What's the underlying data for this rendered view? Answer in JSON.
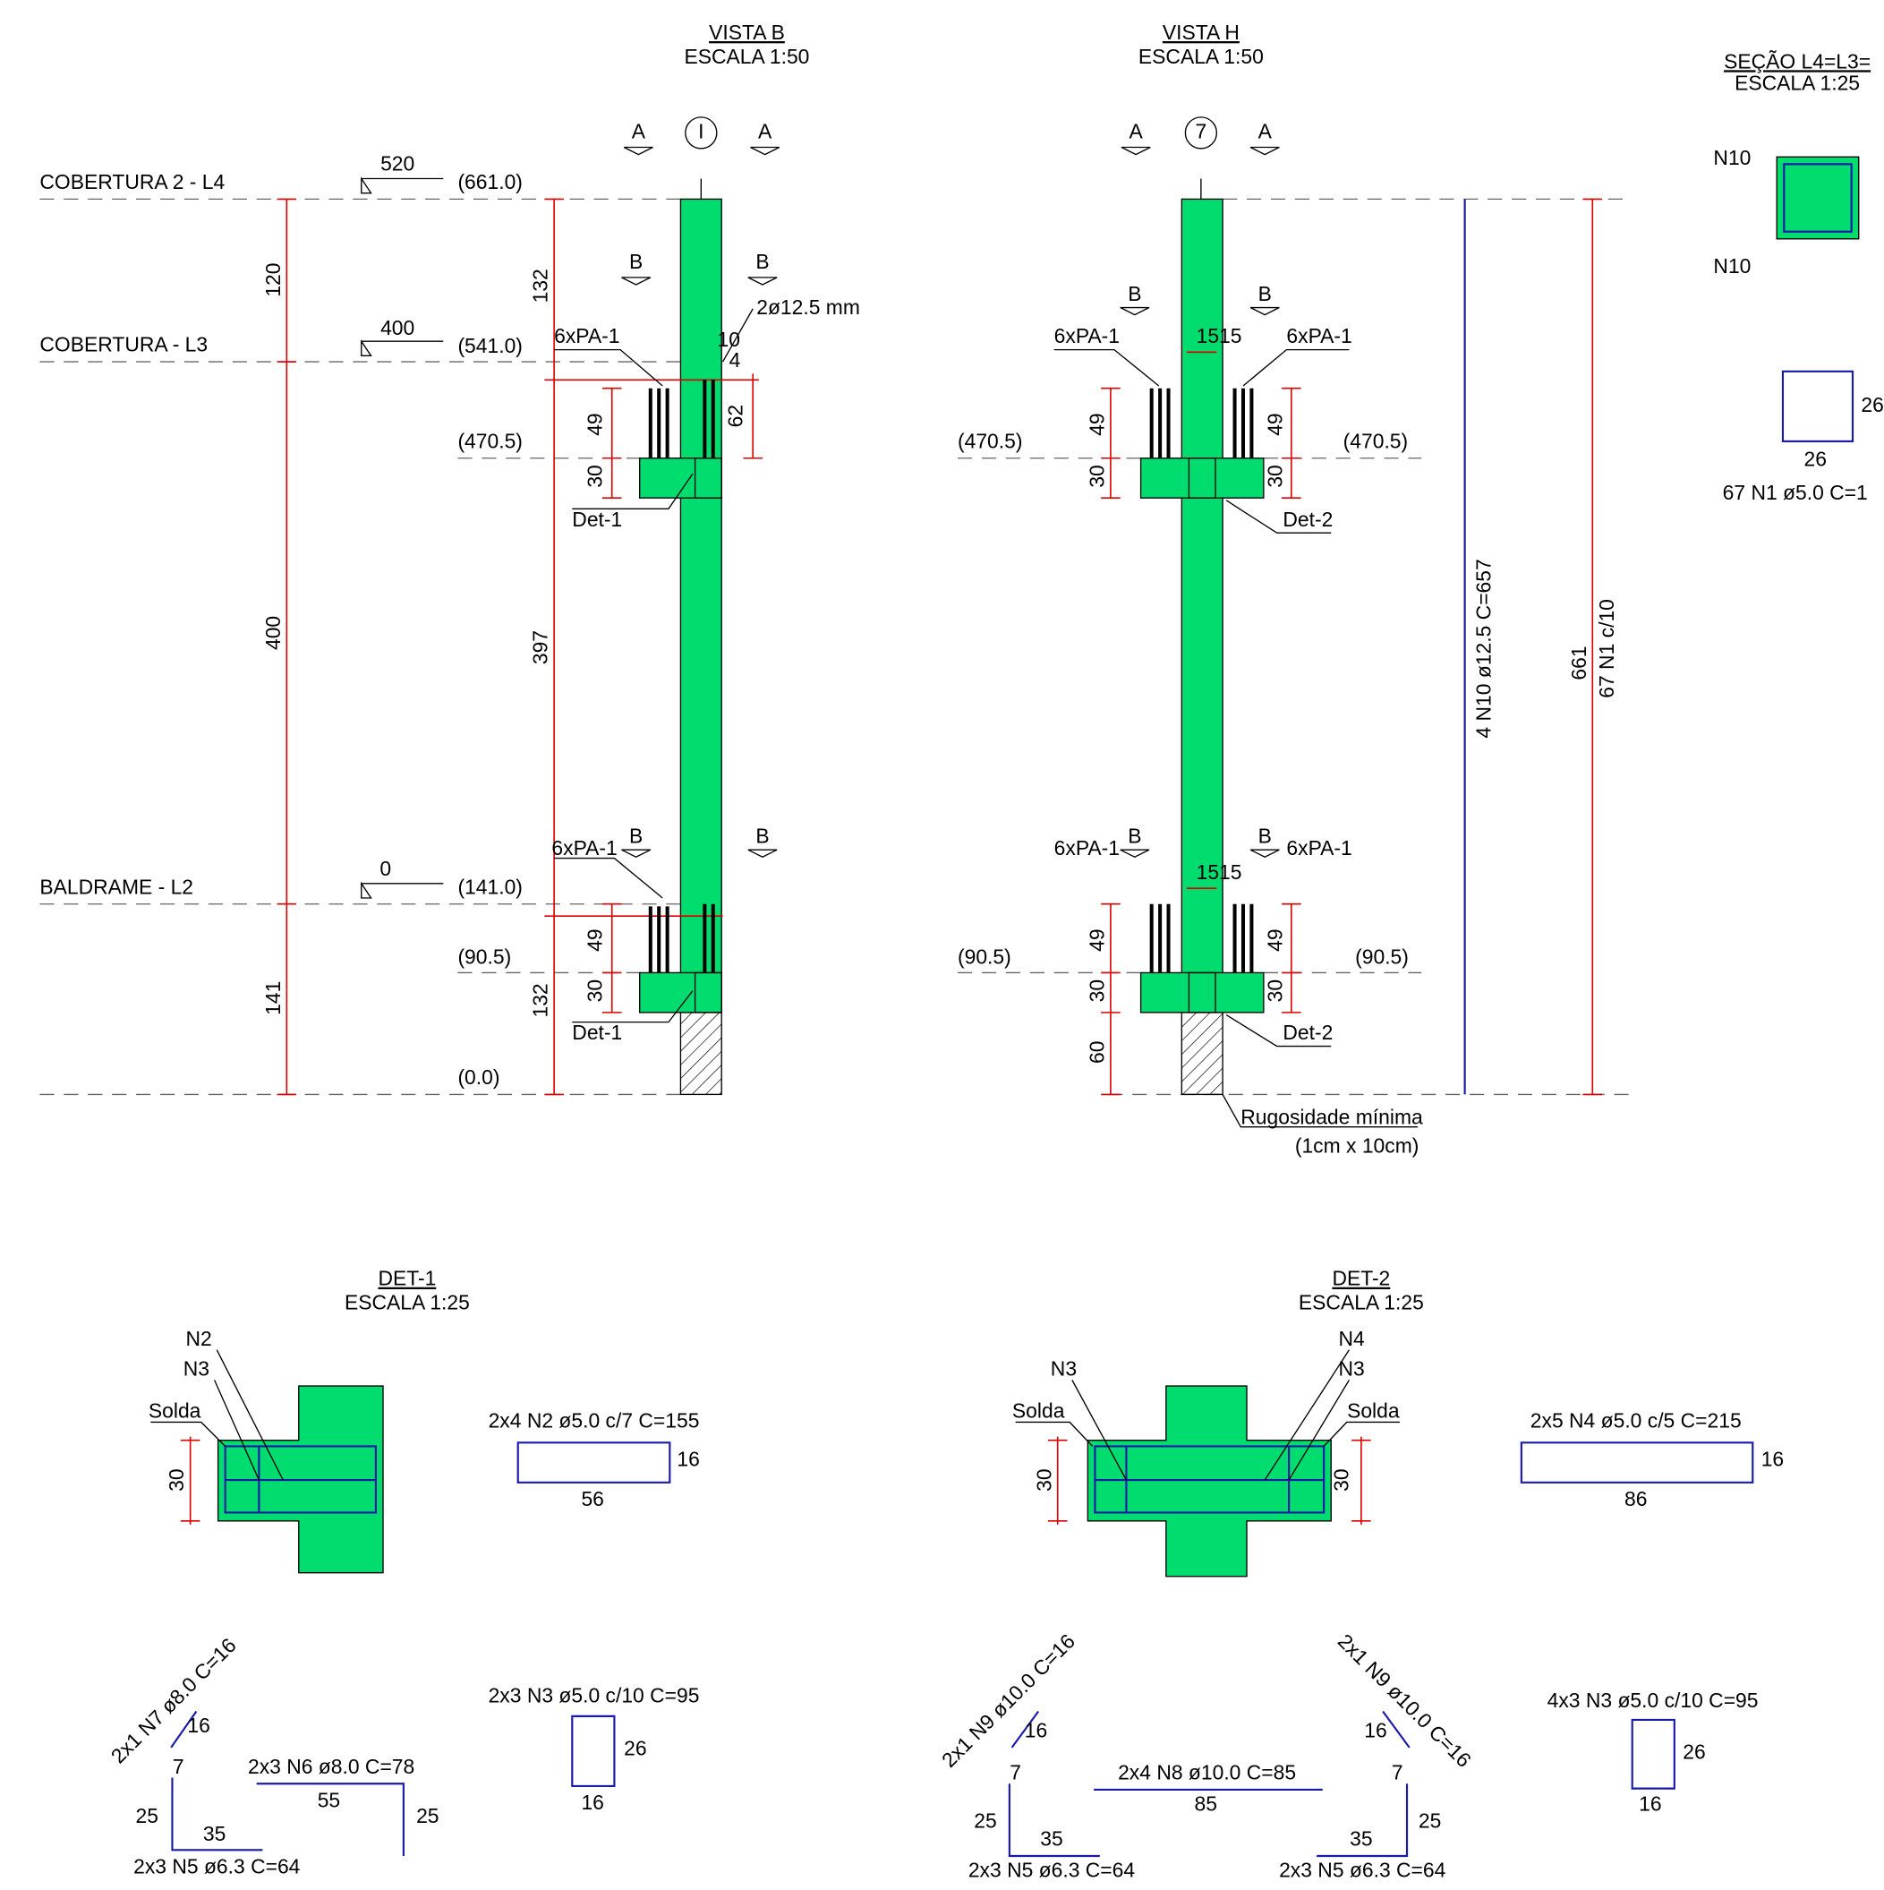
{
  "vista_b": {
    "title": "VISTA B",
    "scale": "ESCALA 1:50",
    "labels": [
      "A",
      "I",
      "A",
      "COBERTURA 2 - L4",
      "520",
      "(661.0)",
      "120",
      "132",
      "B",
      "B",
      "2ø12.5 mm",
      "COBERTURA - L3",
      "400",
      "(541.0)",
      "6xPA-1",
      "10",
      "4",
      "62",
      "49",
      "(470.5)",
      "30",
      "Det-1",
      "400",
      "397",
      "6xPA-1",
      "B",
      "B",
      "BALDRAME - L2",
      "0",
      "(141.0)",
      "(90.5)",
      "49",
      "30",
      "132",
      "141",
      "Det-1",
      "(0.0)"
    ]
  },
  "vista_h": {
    "title": "VISTA H",
    "scale": "ESCALA 1:50",
    "labels": [
      "A",
      "7",
      "A",
      "B",
      "B",
      "6xPA-1",
      "1515",
      "6xPA-1",
      "49",
      "49",
      "(470.5)",
      "(470.5)",
      "30",
      "30",
      "Det-2",
      "4 N10 ø12.5 C=657",
      "661",
      "67 N1 c/10",
      "6xPA-1",
      "B",
      "B",
      "6xPA-1",
      "1515",
      "49",
      "49",
      "(90.5)",
      "(90.5)",
      "30",
      "30",
      "Det-2",
      "60",
      "Rugosidade mínima",
      "(1cm x 10cm)"
    ]
  },
  "secao": {
    "title": "SEÇÃO L4=L3=",
    "scale": "ESCALA 1:25",
    "labels": [
      "N10",
      "N10",
      "26",
      "26",
      "67 N1 ø5.0 C=1"
    ]
  },
  "det_1": {
    "title": "DET-1",
    "scale": "ESCALA 1:25",
    "labels": [
      "N2",
      "N3",
      "Solda",
      "30",
      "2x4 N2 ø5.0 c/7 C=155",
      "16",
      "56",
      "2x1 N7 ø8.0 C=16",
      "16",
      "2x3 N3 ø5.0 c/10 C=95",
      "26",
      "16",
      "7",
      "2x3 N6 ø8.0 C=78",
      "55",
      "25",
      "25",
      "35",
      "2x3 N5 ø6.3 C=64"
    ]
  },
  "det_2": {
    "title": "DET-2",
    "scale": "ESCALA 1:25",
    "labels": [
      "N4",
      "N3",
      "N3",
      "Solda",
      "Solda",
      "30",
      "30",
      "2x5 N4 ø5.0 c/5 C=215",
      "16",
      "86",
      "2x1 N9 ø10.0 C=16",
      "16",
      "2x1 N9 ø10.0 C=16",
      "16",
      "4x3 N3 ø5.0 c/10 C=95",
      "26",
      "16",
      "7",
      "2x4 N8 ø10.0 C=85",
      "7",
      "85",
      "25",
      "25",
      "35",
      "35",
      "2x3 N5 ø6.3 C=64",
      "2x3 N5 ø6.3 C=64"
    ]
  }
}
